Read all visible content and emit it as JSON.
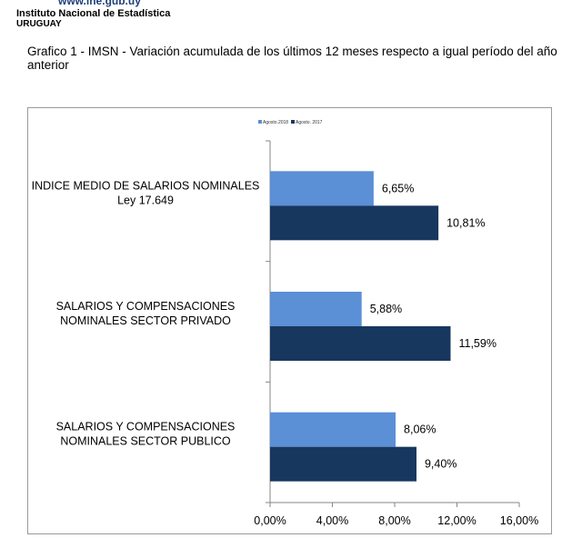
{
  "header": {
    "url": "www.ine.gub.uy",
    "institute": "Instituto Nacional de Estadística",
    "country": "URUGUAY"
  },
  "caption": "Grafico 1 - IMSN - Variación acumulada de los últimos 12 meses respecto a igual período del año anterior",
  "colors": {
    "series_2018": "#5b8fd6",
    "series_2017": "#17375e",
    "axis": "#868686"
  },
  "chart_data": {
    "type": "bar",
    "orientation": "horizontal",
    "categories": [
      [
        "INDICE MEDIO DE SALARIOS NOMINALES",
        "Ley 17.649"
      ],
      [
        "SALARIOS Y COMPENSACIONES",
        "NOMINALES SECTOR PRIVADO"
      ],
      [
        "SALARIOS Y COMPENSACIONES",
        "NOMINALES SECTOR PUBLICO"
      ]
    ],
    "series": [
      {
        "name": "Agosto.2018",
        "values": [
          6.65,
          5.88,
          8.06
        ],
        "labels": [
          "6,65%",
          "5,88%",
          "8,06%"
        ]
      },
      {
        "name": "Agosto. 2017",
        "values": [
          10.81,
          11.59,
          9.4
        ],
        "labels": [
          "10,81%",
          "11,59%",
          "9,40%"
        ]
      }
    ],
    "xlim": [
      0,
      16
    ],
    "xticks": [
      "0,00%",
      "4,00%",
      "8,00%",
      "12,00%",
      "16,00%"
    ],
    "legend_position": "top",
    "grid": false
  }
}
